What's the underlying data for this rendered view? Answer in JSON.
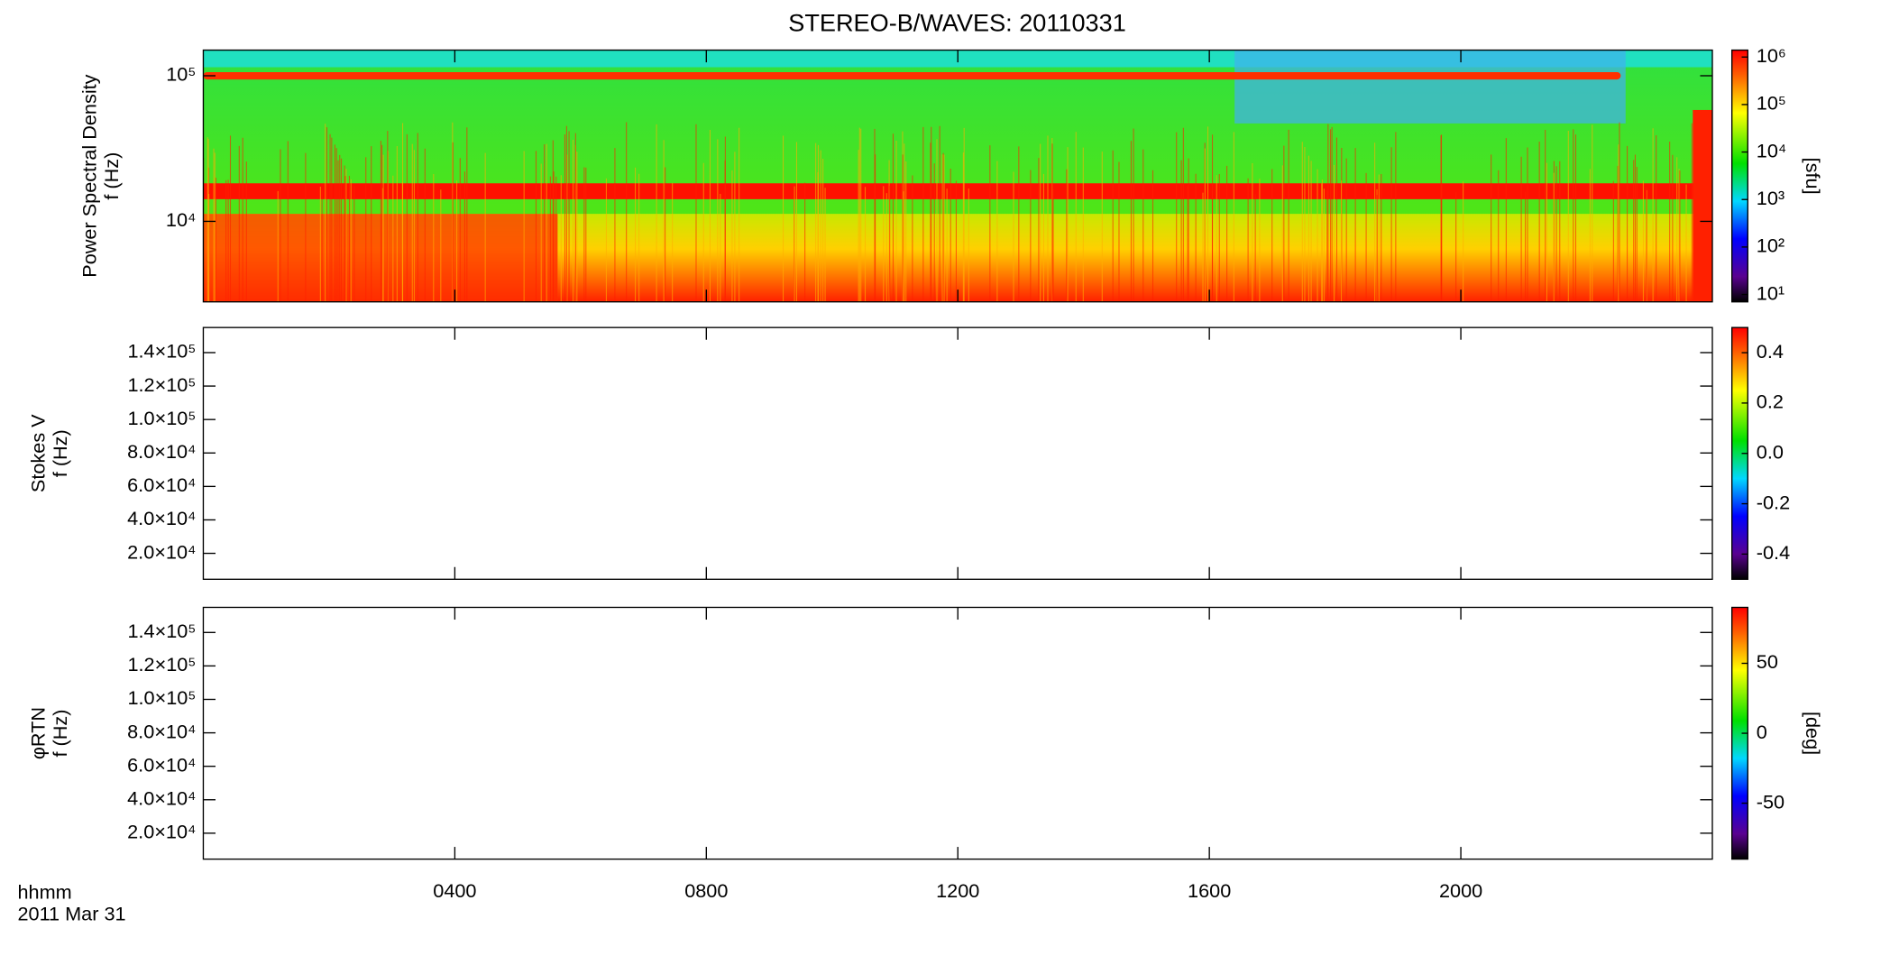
{
  "title": "STEREO-B/WAVES: 20110331",
  "x_label": "hhmm",
  "date_label": "2011 Mar 31",
  "chart_data": [
    {
      "type": "heatmap",
      "ylabel": [
        "Power Spectral Density",
        "f (Hz)"
      ],
      "ylog": true,
      "ylim": [
        2800,
        150000
      ],
      "yticks": [
        {
          "value": 10000,
          "label": "10⁴"
        },
        {
          "value": 100000,
          "label": "10⁵"
        }
      ],
      "xlim": [
        0,
        24
      ],
      "xticks": [
        4,
        8,
        12,
        16,
        20
      ],
      "colorbar": {
        "log": true,
        "lim": [
          7,
          1400000
        ],
        "label": "[sfu]",
        "ticks": [
          {
            "value": 10,
            "label": "10¹"
          },
          {
            "value": 100,
            "label": "10²"
          },
          {
            "value": 1000,
            "label": "10³"
          },
          {
            "value": 10000,
            "label": "10⁴"
          },
          {
            "value": 100000,
            "label": "10⁵"
          },
          {
            "value": 1000000,
            "label": "10⁶"
          }
        ]
      }
    },
    {
      "type": "heatmap",
      "ylabel": [
        "Stokes V",
        "f (Hz)"
      ],
      "ylog": false,
      "ylim": [
        4500,
        155000
      ],
      "yticks": [
        {
          "value": 20000,
          "label": "2.0×10⁴"
        },
        {
          "value": 40000,
          "label": "4.0×10⁴"
        },
        {
          "value": 60000,
          "label": "6.0×10⁴"
        },
        {
          "value": 80000,
          "label": "8.0×10⁴"
        },
        {
          "value": 100000,
          "label": "1.0×10⁵"
        },
        {
          "value": 120000,
          "label": "1.2×10⁵"
        },
        {
          "value": 140000,
          "label": "1.4×10⁵"
        }
      ],
      "xlim": [
        0,
        24
      ],
      "xticks": [
        4,
        8,
        12,
        16,
        20
      ],
      "colorbar": {
        "log": false,
        "lim": [
          -0.5,
          0.5
        ],
        "ticks": [
          -0.4,
          -0.2,
          {
            "value": 0,
            "label": "0.0"
          },
          0.2,
          0.4
        ]
      }
    },
    {
      "type": "heatmap",
      "ylabel": [
        "φRTN",
        "f (Hz)"
      ],
      "ylog": false,
      "ylim": [
        4500,
        155000
      ],
      "yticks": [
        {
          "value": 20000,
          "label": "2.0×10⁴"
        },
        {
          "value": 40000,
          "label": "4.0×10⁴"
        },
        {
          "value": 60000,
          "label": "6.0×10⁴"
        },
        {
          "value": 80000,
          "label": "8.0×10⁴"
        },
        {
          "value": 100000,
          "label": "1.0×10⁵"
        },
        {
          "value": 120000,
          "label": "1.2×10⁵"
        },
        {
          "value": 140000,
          "label": "1.4×10⁵"
        }
      ],
      "xlim": [
        0,
        24
      ],
      "xticks": [
        {
          "value": 4,
          "label": "0400"
        },
        {
          "value": 8,
          "label": "0800"
        },
        {
          "value": 12,
          "label": "1200"
        },
        {
          "value": 16,
          "label": "1600"
        },
        {
          "value": 20,
          "label": "2000"
        }
      ],
      "colorbar": {
        "log": false,
        "lim": [
          -90,
          90
        ],
        "label": "[deg]",
        "ticks": [
          -50,
          0,
          50
        ]
      }
    }
  ]
}
